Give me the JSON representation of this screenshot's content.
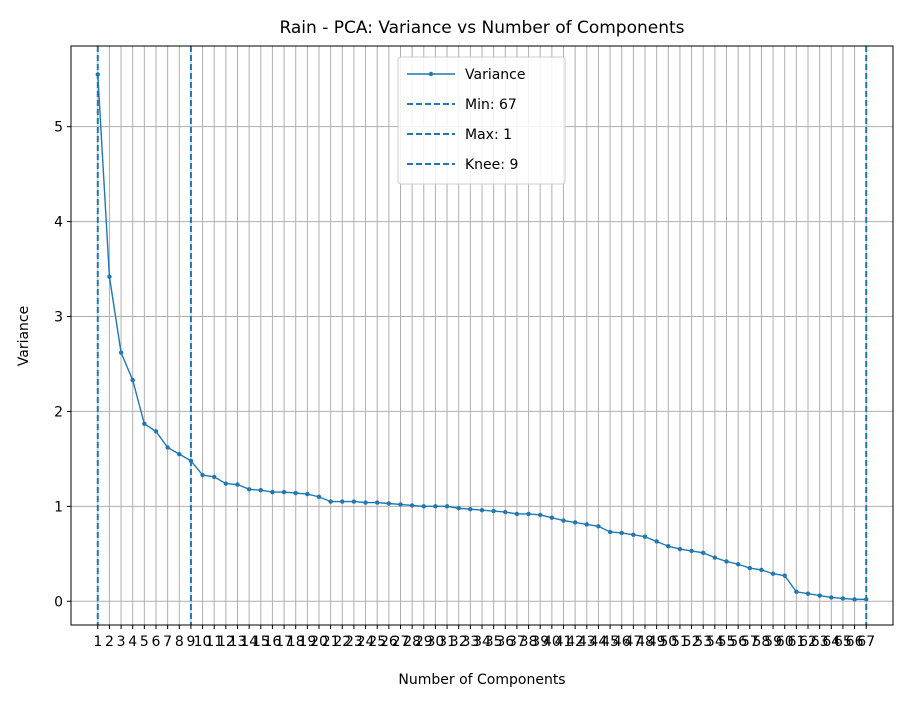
{
  "chart_data": {
    "type": "line",
    "title": "Rain - PCA: Variance vs Number of Components",
    "xlabel": "Number of Components",
    "ylabel": "Variance",
    "xlim": [
      -1.3,
      69.3
    ],
    "ylim": [
      -0.25,
      5.85
    ],
    "yticks": [
      0,
      1,
      2,
      3,
      4,
      5
    ],
    "grid": true,
    "legend_position": "top-center",
    "colors": {
      "series": "#1f77b4",
      "grid": "#b0b0b0"
    },
    "series": [
      {
        "name": "Variance",
        "x": [
          1,
          2,
          3,
          4,
          5,
          6,
          7,
          8,
          9,
          10,
          11,
          12,
          13,
          14,
          15,
          16,
          17,
          18,
          19,
          20,
          21,
          22,
          23,
          24,
          25,
          26,
          27,
          28,
          29,
          30,
          31,
          32,
          33,
          34,
          35,
          36,
          37,
          38,
          39,
          40,
          41,
          42,
          43,
          44,
          45,
          46,
          47,
          48,
          49,
          50,
          51,
          52,
          53,
          54,
          55,
          56,
          57,
          58,
          59,
          60,
          61,
          62,
          63,
          64,
          65,
          66,
          67
        ],
        "y": [
          5.55,
          3.42,
          2.62,
          2.33,
          1.87,
          1.79,
          1.62,
          1.55,
          1.48,
          1.33,
          1.31,
          1.24,
          1.23,
          1.18,
          1.17,
          1.15,
          1.15,
          1.14,
          1.13,
          1.1,
          1.05,
          1.05,
          1.05,
          1.04,
          1.04,
          1.03,
          1.02,
          1.01,
          1.0,
          1.0,
          1.0,
          0.98,
          0.97,
          0.96,
          0.95,
          0.94,
          0.92,
          0.92,
          0.91,
          0.88,
          0.85,
          0.83,
          0.81,
          0.79,
          0.73,
          0.72,
          0.7,
          0.68,
          0.63,
          0.58,
          0.55,
          0.53,
          0.51,
          0.46,
          0.42,
          0.39,
          0.35,
          0.33,
          0.29,
          0.27,
          0.1,
          0.08,
          0.06,
          0.04,
          0.03,
          0.02,
          0.02
        ]
      }
    ],
    "vlines": [
      {
        "name": "Min: 67",
        "x": 67
      },
      {
        "name": "Max: 1",
        "x": 1
      },
      {
        "name": "Knee: 9",
        "x": 9
      }
    ]
  }
}
